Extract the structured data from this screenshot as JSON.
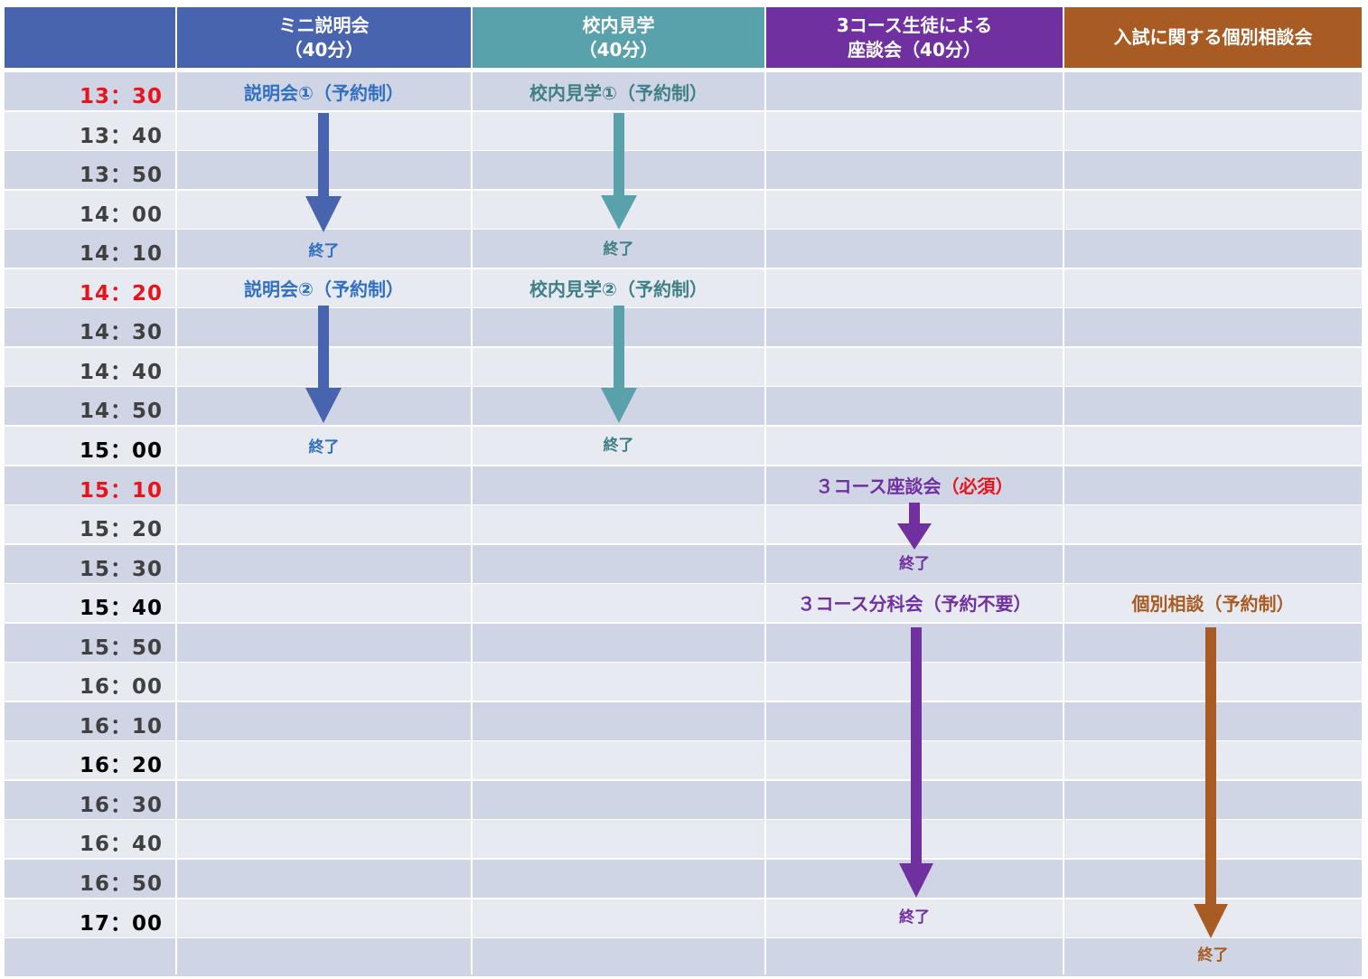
{
  "headers": {
    "blank": "",
    "col1": "ミニ説明会\n（40分）",
    "col2": "校内見学\n（40分）",
    "col3": "3コース生徒による\n座談会（40分）",
    "col4": "入試に関する個別相談会"
  },
  "colors": {
    "header_blank": "#4864ae",
    "header_col1": "#4864ae",
    "header_col2": "#59a2ac",
    "header_col3": "#7030a0",
    "header_col4": "#a85c24",
    "row_odd": "#d0d5e6",
    "row_even": "#e8eaf2",
    "accent_red": "#e8141c",
    "text_blue": "#3070c0",
    "text_teal": "#3f7f86"
  },
  "times": [
    "13：30",
    "13：40",
    "13：50",
    "14：00",
    "14：10",
    "14：20",
    "14：30",
    "14：40",
    "14：50",
    "15：00",
    "15：10",
    "15：20",
    "15：30",
    "15：40",
    "15：50",
    "16：00",
    "16：10",
    "16：20",
    "16：30",
    "16：40",
    "16：50",
    "17：00",
    ""
  ],
  "events": {
    "col1_session1": "説明会①（予約制）",
    "col1_session1_end": "終了",
    "col1_session2": "説明会②（予約制）",
    "col1_session2_end": "終了",
    "col2_session1": "校内見学①（予約制）",
    "col2_session1_end": "終了",
    "col2_session2": "校内見学②（予約制）",
    "col2_session2_end": "終了",
    "col3_roundtable": "３コース座談会",
    "col3_roundtable_required": "（必須）",
    "col3_roundtable_end": "終了",
    "col3_breakout": "３コース分科会（予約不要）",
    "col3_breakout_end": "終了",
    "col4_consult": "個別相談（予約制）",
    "col4_consult_end": "終了"
  }
}
